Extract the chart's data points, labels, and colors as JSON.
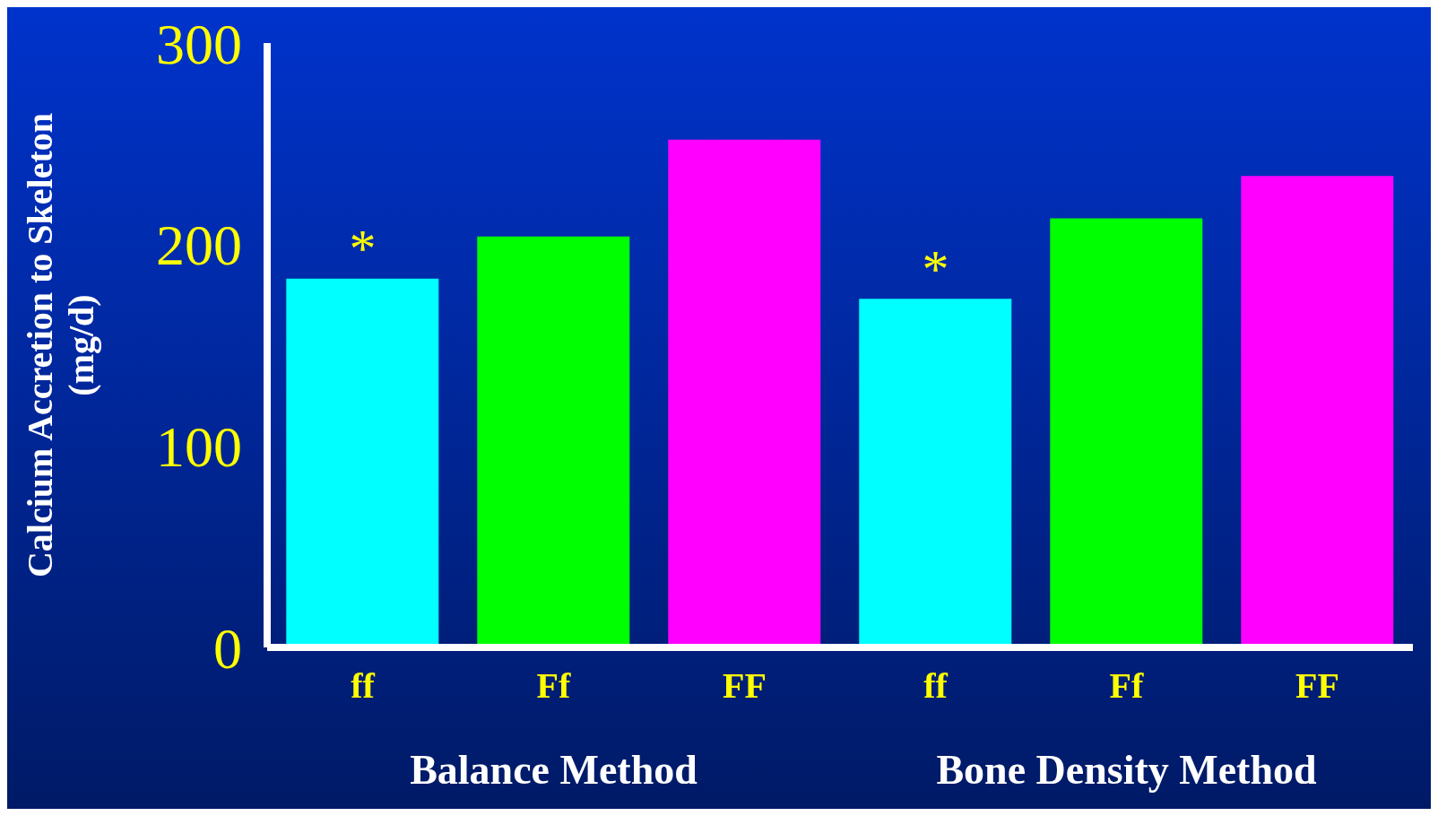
{
  "chart_data": {
    "type": "bar",
    "ylabel": "Calcium Accretion to Skeleton\n(mg/d)",
    "categories": [
      "ff",
      "Ff",
      "FF",
      "ff",
      "Ff",
      "FF"
    ],
    "values": [
      183,
      204,
      252,
      173,
      213,
      234
    ],
    "colors": [
      "#00ffff",
      "#00ff00",
      "#ff00ff",
      "#00ffff",
      "#00ff00",
      "#ff00ff"
    ],
    "ylim": [
      0,
      300
    ],
    "yticks": [
      0,
      100,
      200,
      300
    ],
    "grid": false,
    "annotations": [
      "*",
      "*",
      "Balance Method",
      "Bone Density Method"
    ]
  }
}
